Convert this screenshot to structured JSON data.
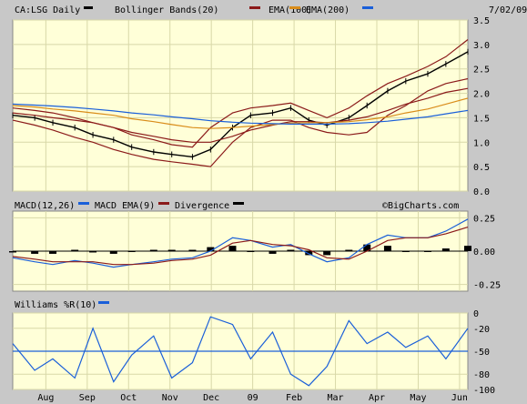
{
  "panels": {
    "price": {
      "ticker_label": "CA:LSG Daily",
      "date_label": "7/02/09",
      "legend": [
        {
          "label": "Bollinger Bands(20)",
          "color": "#000000"
        },
        {
          "label": "EMA(100)",
          "color": "#8b1a1a"
        },
        {
          "label": "EMA(200)",
          "color": "#d98c1a"
        },
        {
          "label": "",
          "color": "#1a5fd9"
        }
      ],
      "yticks": [
        "3.5",
        "3.0",
        "2.5",
        "2.0",
        "1.5",
        "1.0",
        "0.5",
        "0.0"
      ]
    },
    "macd": {
      "legend": [
        {
          "label": "MACD(12,26)",
          "color": "#1a5fd9"
        },
        {
          "label": "MACD EMA(9)",
          "color": "#8b1a1a"
        },
        {
          "label": "Divergence",
          "color": "#000000"
        }
      ],
      "watermark": "©BigCharts.com",
      "yticks": [
        "0.25",
        "0.00",
        "-0.25"
      ]
    },
    "williams": {
      "legend": [
        {
          "label": "Williams %R(10)",
          "color": "#1a5fd9"
        }
      ],
      "yticks": [
        "0",
        "-20",
        "-50",
        "-80",
        "-100"
      ]
    }
  },
  "x_axis": {
    "labels": [
      "Aug",
      "Sep",
      "Oct",
      "Nov",
      "Dec",
      "09",
      "Feb",
      "Mar",
      "Apr",
      "May",
      "Jun"
    ]
  },
  "colors": {
    "plot_bg": "#ffffd8",
    "frame_bg": "#c8c8c8",
    "grid": "#d8d8a8",
    "price_bar": "#000000",
    "bollinger": "#8b1a1a",
    "ema100": "#d98c1a",
    "ema200": "#1a5fd9",
    "macd": "#1a5fd9",
    "signal": "#8b1a1a",
    "divergence": "#000000",
    "williams": "#1a5fd9"
  },
  "chart_data": [
    {
      "type": "line",
      "title": "CA:LSG Daily",
      "x": [
        "2008-07-15",
        "2008-08-01",
        "2008-08-15",
        "2008-09-01",
        "2008-09-15",
        "2008-10-01",
        "2008-10-15",
        "2008-11-01",
        "2008-11-15",
        "2008-12-01",
        "2008-12-15",
        "2009-01-01",
        "2009-01-15",
        "2009-02-01",
        "2009-02-15",
        "2009-03-01",
        "2009-03-15",
        "2009-04-01",
        "2009-04-15",
        "2009-05-01",
        "2009-05-15",
        "2009-06-01",
        "2009-06-15",
        "2009-07-02"
      ],
      "series": [
        {
          "name": "Price",
          "values": [
            1.55,
            1.5,
            1.4,
            1.3,
            1.15,
            1.05,
            0.9,
            0.8,
            0.75,
            0.7,
            0.85,
            1.3,
            1.55,
            1.6,
            1.7,
            1.45,
            1.35,
            1.5,
            1.75,
            2.05,
            2.25,
            2.4,
            2.6,
            2.85
          ]
        },
        {
          "name": "Bollinger Bands(20) upper",
          "values": [
            1.7,
            1.65,
            1.6,
            1.5,
            1.4,
            1.3,
            1.15,
            1.05,
            0.95,
            0.9,
            1.3,
            1.6,
            1.7,
            1.75,
            1.8,
            1.65,
            1.5,
            1.7,
            1.95,
            2.2,
            2.35,
            2.55,
            2.75,
            3.1
          ]
        },
        {
          "name": "Bollinger Bands(20) lower",
          "values": [
            1.45,
            1.35,
            1.25,
            1.1,
            1.0,
            0.85,
            0.75,
            0.65,
            0.6,
            0.55,
            0.5,
            1.0,
            1.3,
            1.45,
            1.45,
            1.3,
            1.2,
            1.15,
            1.2,
            1.55,
            1.75,
            2.05,
            2.2,
            2.3
          ]
        },
        {
          "name": "EMA(100)",
          "values": [
            1.6,
            1.55,
            1.5,
            1.45,
            1.4,
            1.3,
            1.2,
            1.12,
            1.05,
            1.0,
            1.0,
            1.12,
            1.25,
            1.35,
            1.42,
            1.42,
            1.4,
            1.45,
            1.52,
            1.65,
            1.78,
            1.9,
            2.02,
            2.1
          ]
        },
        {
          "name": "EMA(200)",
          "values": [
            1.75,
            1.72,
            1.68,
            1.64,
            1.6,
            1.55,
            1.48,
            1.42,
            1.36,
            1.3,
            1.28,
            1.3,
            1.33,
            1.36,
            1.39,
            1.4,
            1.4,
            1.42,
            1.46,
            1.52,
            1.6,
            1.68,
            1.78,
            1.9
          ]
        },
        {
          "name": "",
          "values": [
            1.78,
            1.76,
            1.74,
            1.71,
            1.68,
            1.64,
            1.6,
            1.56,
            1.52,
            1.48,
            1.44,
            1.41,
            1.39,
            1.38,
            1.37,
            1.37,
            1.37,
            1.38,
            1.4,
            1.43,
            1.47,
            1.52,
            1.58,
            1.65
          ]
        }
      ],
      "ylim": [
        0,
        3.5
      ]
    },
    {
      "type": "line",
      "title": "MACD(12,26)",
      "x": [
        "2008-07-15",
        "2008-08-01",
        "2008-08-15",
        "2008-09-01",
        "2008-09-15",
        "2008-10-01",
        "2008-10-15",
        "2008-11-01",
        "2008-11-15",
        "2008-12-01",
        "2008-12-15",
        "2009-01-01",
        "2009-01-15",
        "2009-02-01",
        "2009-02-15",
        "2009-03-01",
        "2009-03-15",
        "2009-04-01",
        "2009-04-15",
        "2009-05-01",
        "2009-05-15",
        "2009-06-01",
        "2009-06-15",
        "2009-07-02"
      ],
      "series": [
        {
          "name": "MACD(12,26)",
          "values": [
            -0.05,
            -0.08,
            -0.1,
            -0.07,
            -0.09,
            -0.12,
            -0.1,
            -0.08,
            -0.06,
            -0.05,
            0.0,
            0.1,
            0.08,
            0.03,
            0.05,
            -0.02,
            -0.08,
            -0.05,
            0.05,
            0.12,
            0.1,
            0.1,
            0.15,
            0.24
          ]
        },
        {
          "name": "MACD EMA(9)",
          "values": [
            -0.04,
            -0.06,
            -0.08,
            -0.08,
            -0.08,
            -0.1,
            -0.1,
            -0.09,
            -0.07,
            -0.06,
            -0.03,
            0.06,
            0.08,
            0.05,
            0.04,
            0.01,
            -0.05,
            -0.06,
            0.0,
            0.08,
            0.1,
            0.1,
            0.13,
            0.18
          ]
        },
        {
          "name": "Divergence",
          "values": [
            -0.01,
            -0.02,
            -0.02,
            0.01,
            -0.01,
            -0.02,
            0.0,
            0.01,
            0.01,
            0.01,
            0.03,
            0.04,
            0.0,
            -0.02,
            0.01,
            -0.03,
            -0.03,
            0.01,
            0.05,
            0.04,
            0.0,
            0.0,
            0.02,
            0.04
          ]
        }
      ],
      "ylim": [
        -0.3,
        0.3
      ]
    },
    {
      "type": "line",
      "title": "Williams %R(10)",
      "x": [
        "2008-07-15",
        "2008-08-01",
        "2008-08-15",
        "2008-09-01",
        "2008-09-15",
        "2008-10-01",
        "2008-10-15",
        "2008-11-01",
        "2008-11-15",
        "2008-12-01",
        "2008-12-15",
        "2009-01-01",
        "2009-01-15",
        "2009-02-01",
        "2009-02-15",
        "2009-03-01",
        "2009-03-15",
        "2009-04-01",
        "2009-04-15",
        "2009-05-01",
        "2009-05-15",
        "2009-06-01",
        "2009-06-15",
        "2009-07-02"
      ],
      "series": [
        {
          "name": "Williams %R(10)",
          "values": [
            -40,
            -75,
            -60,
            -85,
            -20,
            -90,
            -55,
            -30,
            -85,
            -65,
            -5,
            -15,
            -60,
            -25,
            -80,
            -95,
            -70,
            -10,
            -40,
            -25,
            -45,
            -30,
            -60,
            -20
          ]
        }
      ],
      "ylim": [
        -100,
        0
      ]
    }
  ]
}
